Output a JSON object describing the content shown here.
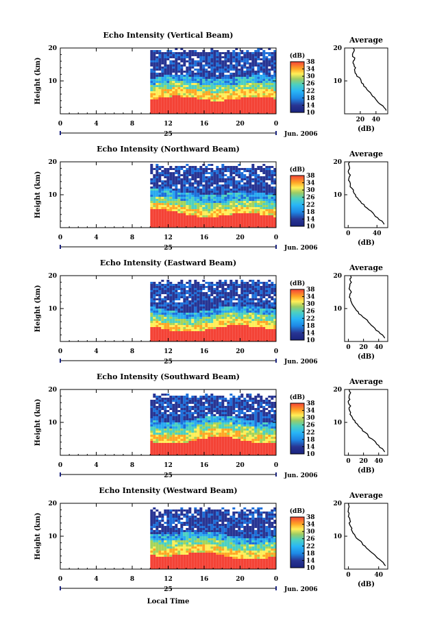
{
  "chart_data": {
    "type": "heatmap",
    "month_label": "Jun. 2006",
    "xlabel_bottom": "Local Time",
    "ylabel": "Height (km)",
    "xlim": [
      0,
      24
    ],
    "ylim": [
      0,
      20
    ],
    "x_ticks": [
      "0",
      "4",
      "8",
      "12",
      "16",
      "20",
      "0"
    ],
    "y_ticks": [
      "20",
      "10"
    ],
    "date_label": "25",
    "data_start_hour": 10,
    "colorbar": {
      "label": "(dB)",
      "ticks": [
        "38",
        "34",
        "30",
        "26",
        "22",
        "18",
        "14",
        "10"
      ],
      "range": [
        10,
        38
      ]
    },
    "average_panel": {
      "title": "Average",
      "xlabel": "(dB)",
      "yticks": [
        "20",
        "10"
      ]
    },
    "panels": [
      {
        "title": "Echo Intensity (Vertical Beam)",
        "avg_xticks": [
          "20",
          "40"
        ],
        "avg_xlim": [
          0,
          55
        ],
        "avg_profile": [
          [
            53,
            1
          ],
          [
            50,
            2
          ],
          [
            45,
            3
          ],
          [
            41,
            4
          ],
          [
            38,
            5
          ],
          [
            34,
            6
          ],
          [
            30,
            7
          ],
          [
            27,
            8
          ],
          [
            24,
            9
          ],
          [
            21,
            10
          ],
          [
            19,
            11
          ],
          [
            15,
            12
          ],
          [
            13,
            13
          ],
          [
            14,
            14
          ],
          [
            12,
            15
          ],
          [
            11,
            16
          ],
          [
            13,
            17
          ],
          [
            10,
            18
          ],
          [
            12,
            19
          ],
          [
            11,
            20
          ]
        ],
        "red_top_km": 4.5,
        "yellow_top_km": 7,
        "green_top_km": 9,
        "cyan_top_km": 11,
        "data_top_km": 19.5
      },
      {
        "title": "Echo Intensity (Northward Beam)",
        "avg_xticks": [
          "0",
          "40"
        ],
        "avg_xlim": [
          -5,
          55
        ],
        "avg_profile": [
          [
            50,
            1
          ],
          [
            47,
            2
          ],
          [
            41,
            3
          ],
          [
            36,
            4
          ],
          [
            32,
            5
          ],
          [
            26,
            6
          ],
          [
            22,
            7
          ],
          [
            17,
            8
          ],
          [
            13,
            9
          ],
          [
            10,
            10
          ],
          [
            7,
            11
          ],
          [
            5,
            12
          ],
          [
            3,
            13
          ],
          [
            2,
            14
          ],
          [
            1,
            15
          ],
          [
            3,
            16
          ],
          [
            0,
            17
          ],
          [
            2,
            18
          ],
          [
            1,
            19
          ],
          [
            2,
            20
          ]
        ],
        "red_top_km": 4.5,
        "yellow_top_km": 6.5,
        "green_top_km": 8.5,
        "cyan_top_km": 11,
        "data_top_km": 19
      },
      {
        "title": "Echo Intensity (Eastward Beam)",
        "avg_xticks": [
          "0",
          "20",
          "40"
        ],
        "avg_xlim": [
          -5,
          52
        ],
        "avg_profile": [
          [
            48,
            1
          ],
          [
            45,
            2
          ],
          [
            40,
            3
          ],
          [
            35,
            4
          ],
          [
            30,
            5
          ],
          [
            26,
            6
          ],
          [
            22,
            7
          ],
          [
            17,
            8
          ],
          [
            13,
            9
          ],
          [
            9,
            10
          ],
          [
            6,
            11
          ],
          [
            4,
            12
          ],
          [
            3,
            13
          ],
          [
            2,
            14
          ],
          [
            4,
            15
          ],
          [
            1,
            16
          ],
          [
            2,
            17
          ],
          [
            4,
            18
          ],
          [
            2,
            19
          ],
          [
            3,
            20
          ]
        ],
        "red_top_km": 4.5,
        "yellow_top_km": 6.5,
        "green_top_km": 8.5,
        "cyan_top_km": 10.5,
        "data_top_km": 18.5
      },
      {
        "title": "Echo Intensity (Southward Beam)",
        "avg_xticks": [
          "0",
          "20",
          "40"
        ],
        "avg_xlim": [
          -5,
          52
        ],
        "avg_profile": [
          [
            48,
            1
          ],
          [
            45,
            2
          ],
          [
            40,
            3
          ],
          [
            36,
            4
          ],
          [
            31,
            5
          ],
          [
            26,
            6
          ],
          [
            22,
            7
          ],
          [
            18,
            8
          ],
          [
            13,
            9
          ],
          [
            9,
            10
          ],
          [
            6,
            11
          ],
          [
            4,
            12
          ],
          [
            3,
            13
          ],
          [
            1,
            14
          ],
          [
            3,
            15
          ],
          [
            0,
            16
          ],
          [
            2,
            17
          ],
          [
            1,
            18
          ],
          [
            3,
            19
          ],
          [
            1,
            20
          ]
        ],
        "red_top_km": 4.5,
        "yellow_top_km": 7,
        "green_top_km": 9,
        "cyan_top_km": 11,
        "data_top_km": 18.5
      },
      {
        "title": "Echo Intensity (Westward Beam)",
        "avg_xticks": [
          "0",
          "40"
        ],
        "avg_xlim": [
          -5,
          52
        ],
        "avg_profile": [
          [
            49,
            1
          ],
          [
            46,
            2
          ],
          [
            41,
            3
          ],
          [
            36,
            4
          ],
          [
            31,
            5
          ],
          [
            26,
            6
          ],
          [
            22,
            7
          ],
          [
            18,
            8
          ],
          [
            13,
            9
          ],
          [
            9,
            10
          ],
          [
            6,
            11
          ],
          [
            4,
            12
          ],
          [
            3,
            13
          ],
          [
            1,
            14
          ],
          [
            2,
            15
          ],
          [
            0,
            16
          ],
          [
            1,
            17
          ],
          [
            0,
            18
          ],
          [
            1,
            19
          ],
          [
            0,
            20
          ]
        ],
        "red_top_km": 4.5,
        "yellow_top_km": 7,
        "green_top_km": 9,
        "cyan_top_km": 11,
        "data_top_km": 18.5
      }
    ]
  }
}
